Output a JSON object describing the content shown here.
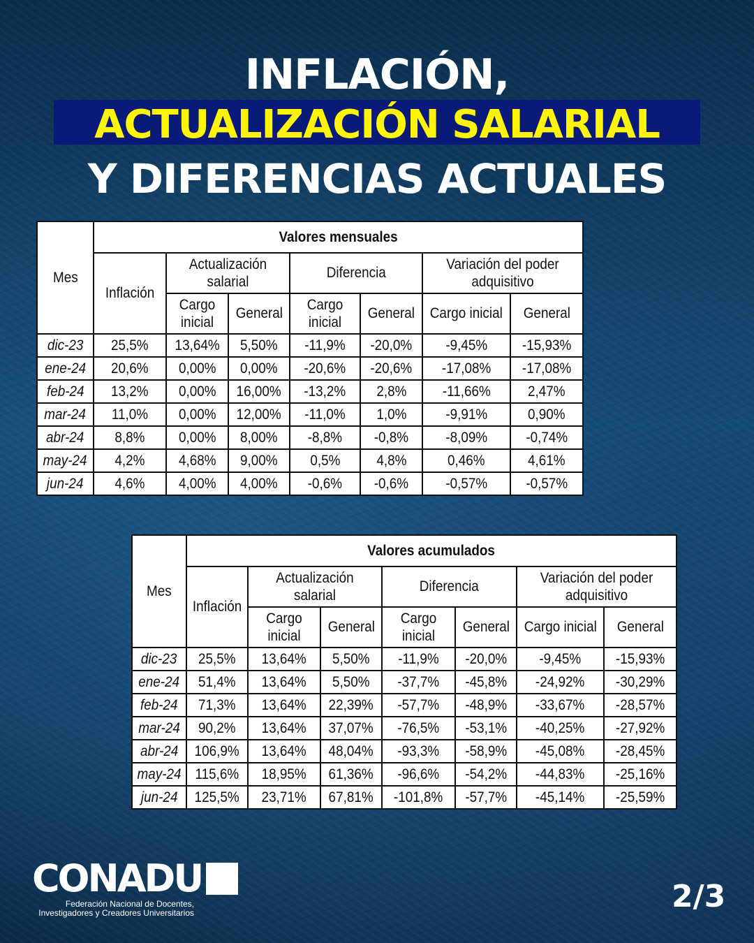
{
  "header": {
    "line1": "INFLACIÓN,",
    "line2": "ACTUALIZACIÓN SALARIAL",
    "line3": "Y DIFERENCIAS ACTUALES"
  },
  "tables": [
    {
      "title": "Valores mensuales",
      "headers": {
        "mes": "Mes",
        "inflacion": "Inflación",
        "actualizacion": "Actualización salarial",
        "diferencia": "Diferencia",
        "variacion": "Variación del poder adquisitivo",
        "cargo_inicial": "Cargo inicial",
        "general": "General"
      },
      "rows": [
        [
          "dic-23",
          "25,5%",
          "13,64%",
          "5,50%",
          "-11,9%",
          "-20,0%",
          "-9,45%",
          "-15,93%"
        ],
        [
          "ene-24",
          "20,6%",
          "0,00%",
          "0,00%",
          "-20,6%",
          "-20,6%",
          "-17,08%",
          "-17,08%"
        ],
        [
          "feb-24",
          "13,2%",
          "0,00%",
          "16,00%",
          "-13,2%",
          "2,8%",
          "-11,66%",
          "2,47%"
        ],
        [
          "mar-24",
          "11,0%",
          "0,00%",
          "12,00%",
          "-11,0%",
          "1,0%",
          "-9,91%",
          "0,90%"
        ],
        [
          "abr-24",
          "8,8%",
          "0,00%",
          "8,00%",
          "-8,8%",
          "-0,8%",
          "-8,09%",
          "-0,74%"
        ],
        [
          "may-24",
          "4,2%",
          "4,68%",
          "9,00%",
          "0,5%",
          "4,8%",
          "0,46%",
          "4,61%"
        ],
        [
          "jun-24",
          "4,6%",
          "4,00%",
          "4,00%",
          "-0,6%",
          "-0,6%",
          "-0,57%",
          "-0,57%"
        ]
      ]
    },
    {
      "title": "Valores acumulados",
      "headers": {
        "mes": "Mes",
        "inflacion": "Inflación",
        "actualizacion": "Actualización salarial",
        "diferencia": "Diferencia",
        "variacion": "Variación del poder adquisitivo",
        "cargo_inicial": "Cargo inicial",
        "general": "General"
      },
      "rows": [
        [
          "dic-23",
          "25,5%",
          "13,64%",
          "5,50%",
          "-11,9%",
          "-20,0%",
          "-9,45%",
          "-15,93%"
        ],
        [
          "ene-24",
          "51,4%",
          "13,64%",
          "5,50%",
          "-37,7%",
          "-45,8%",
          "-24,92%",
          "-30,29%"
        ],
        [
          "feb-24",
          "71,3%",
          "13,64%",
          "22,39%",
          "-57,7%",
          "-48,9%",
          "-33,67%",
          "-28,57%"
        ],
        [
          "mar-24",
          "90,2%",
          "13,64%",
          "37,07%",
          "-76,5%",
          "-53,1%",
          "-40,25%",
          "-27,92%"
        ],
        [
          "abr-24",
          "106,9%",
          "13,64%",
          "48,04%",
          "-93,3%",
          "-58,9%",
          "-45,08%",
          "-28,45%"
        ],
        [
          "may-24",
          "115,6%",
          "18,95%",
          "61,36%",
          "-96,6%",
          "-54,2%",
          "-44,83%",
          "-25,16%"
        ],
        [
          "jun-24",
          "125,5%",
          "23,71%",
          "67,81%",
          "-101,8%",
          "-57,7%",
          "-45,14%",
          "-25,59%"
        ]
      ]
    }
  ],
  "chart_data": [
    {
      "type": "table",
      "title": "Valores mensuales",
      "columns": [
        "Mes",
        "Inflación",
        "Actualización salarial - Cargo inicial",
        "Actualización salarial - General",
        "Diferencia - Cargo inicial",
        "Diferencia - General",
        "Variación del poder adquisitivo - Cargo inicial",
        "Variación del poder adquisitivo - General"
      ],
      "categories": [
        "dic-23",
        "ene-24",
        "feb-24",
        "mar-24",
        "abr-24",
        "may-24",
        "jun-24"
      ],
      "series": [
        {
          "name": "Inflación",
          "values": [
            25.5,
            20.6,
            13.2,
            11.0,
            8.8,
            4.2,
            4.6
          ]
        },
        {
          "name": "Actualización salarial Cargo inicial",
          "values": [
            13.64,
            0.0,
            0.0,
            0.0,
            0.0,
            4.68,
            4.0
          ]
        },
        {
          "name": "Actualización salarial General",
          "values": [
            5.5,
            0.0,
            16.0,
            12.0,
            8.0,
            9.0,
            4.0
          ]
        },
        {
          "name": "Diferencia Cargo inicial",
          "values": [
            -11.9,
            -20.6,
            -13.2,
            -11.0,
            -8.8,
            0.5,
            -0.6
          ]
        },
        {
          "name": "Diferencia General",
          "values": [
            -20.0,
            -20.6,
            2.8,
            1.0,
            -0.8,
            4.8,
            -0.6
          ]
        },
        {
          "name": "Variación del poder adquisitivo Cargo inicial",
          "values": [
            -9.45,
            -17.08,
            -11.66,
            -9.91,
            -8.09,
            0.46,
            -0.57
          ]
        },
        {
          "name": "Variación del poder adquisitivo General",
          "values": [
            -15.93,
            -17.08,
            2.47,
            0.9,
            -0.74,
            4.61,
            -0.57
          ]
        }
      ]
    },
    {
      "type": "table",
      "title": "Valores acumulados",
      "columns": [
        "Mes",
        "Inflación",
        "Actualización salarial - Cargo inicial",
        "Actualización salarial - General",
        "Diferencia - Cargo inicial",
        "Diferencia - General",
        "Variación del poder adquisitivo - Cargo inicial",
        "Variación del poder adquisitivo - General"
      ],
      "categories": [
        "dic-23",
        "ene-24",
        "feb-24",
        "mar-24",
        "abr-24",
        "may-24",
        "jun-24"
      ],
      "series": [
        {
          "name": "Inflación",
          "values": [
            25.5,
            51.4,
            71.3,
            90.2,
            106.9,
            115.6,
            125.5
          ]
        },
        {
          "name": "Actualización salarial Cargo inicial",
          "values": [
            13.64,
            13.64,
            13.64,
            13.64,
            13.64,
            18.95,
            23.71
          ]
        },
        {
          "name": "Actualización salarial General",
          "values": [
            5.5,
            5.5,
            22.39,
            37.07,
            48.04,
            61.36,
            67.81
          ]
        },
        {
          "name": "Diferencia Cargo inicial",
          "values": [
            -11.9,
            -37.7,
            -57.7,
            -76.5,
            -93.3,
            -96.6,
            -101.8
          ]
        },
        {
          "name": "Diferencia General",
          "values": [
            -20.0,
            -45.8,
            -48.9,
            -53.1,
            -58.9,
            -54.2,
            -57.7
          ]
        },
        {
          "name": "Variación del poder adquisitivo Cargo inicial",
          "values": [
            -9.45,
            -24.92,
            -33.67,
            -40.25,
            -45.08,
            -44.83,
            -45.14
          ]
        },
        {
          "name": "Variación del poder adquisitivo General",
          "values": [
            -15.93,
            -30.29,
            -28.57,
            -27.92,
            -28.45,
            -25.16,
            -25.59
          ]
        }
      ]
    }
  ],
  "footer": {
    "logo_text": "CONADU",
    "logo_sub_line1": "Federación Nacional de Docentes,",
    "logo_sub_line2": "Investigadores y Creadores Universitarios",
    "page_indicator": "2/3"
  },
  "colors": {
    "title_white": "#ffffff",
    "title_yellow": "#fff500",
    "highlight_bar": "#0a1a78",
    "background": "#134a72"
  }
}
